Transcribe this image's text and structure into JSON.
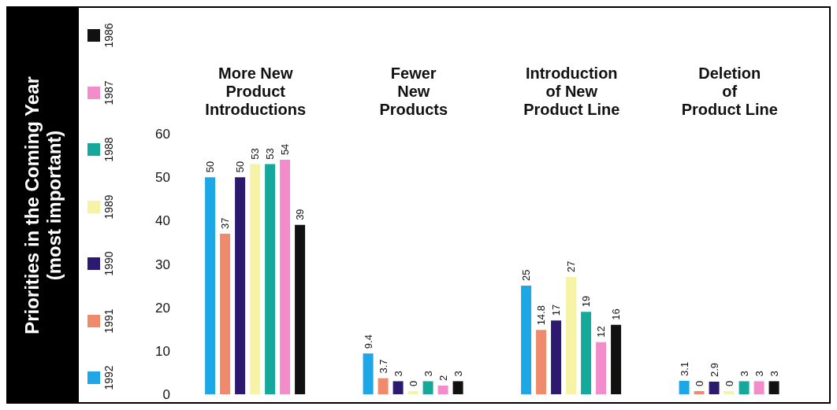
{
  "chart_data": {
    "type": "bar",
    "ylabel": "Priorities in the Coming Year\n(most important)",
    "categories": [
      "More New\nProduct\nIntroductions",
      "Fewer\nNew\nProducts",
      "Introduction\nof New\nProduct Line",
      "Deletion\nof\nProduct Line"
    ],
    "series": [
      {
        "name": "1992",
        "color": "#1ea7e6",
        "values": [
          50,
          9.4,
          25,
          3.1
        ]
      },
      {
        "name": "1991",
        "color": "#ef8a6c",
        "values": [
          37,
          3.7,
          14.8,
          0
        ]
      },
      {
        "name": "1990",
        "color": "#2b1a70",
        "values": [
          50,
          3,
          17,
          2.9
        ]
      },
      {
        "name": "1989",
        "color": "#f7f3a6",
        "values": [
          53,
          0,
          27,
          0
        ]
      },
      {
        "name": "1988",
        "color": "#16a89b",
        "values": [
          53,
          3,
          19,
          3
        ]
      },
      {
        "name": "1987",
        "color": "#f28ccb",
        "values": [
          54,
          2,
          12,
          3
        ]
      },
      {
        "name": "1986",
        "color": "#111111",
        "values": [
          39,
          3,
          16,
          3
        ]
      }
    ],
    "ylim": [
      0,
      60
    ],
    "yticks": [
      0,
      10,
      20,
      30,
      40,
      50,
      60
    ],
    "data_labels": true,
    "legend": "left",
    "grid": false
  }
}
